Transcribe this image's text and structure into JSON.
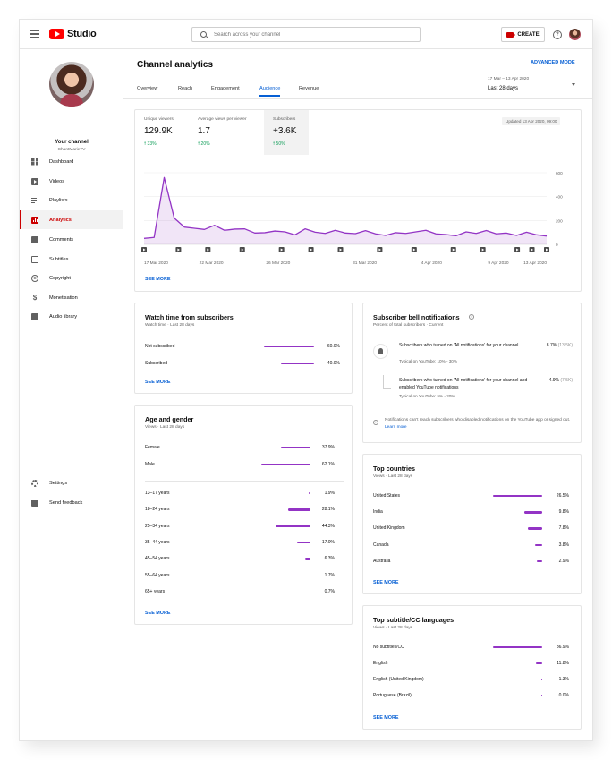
{
  "header": {
    "logo_text": "Studio",
    "search_placeholder": "Search across your channel",
    "create_label": "CREATE",
    "help_glyph": "?"
  },
  "sidebar": {
    "your_channel": "Your channel",
    "channel_name": "ChantMarieTV",
    "items": [
      {
        "label": "Dashboard",
        "icon": "dashboard-icon"
      },
      {
        "label": "Videos",
        "icon": "videos-icon"
      },
      {
        "label": "Playlists",
        "icon": "playlists-icon"
      },
      {
        "label": "Analytics",
        "icon": "analytics-icon",
        "active": true
      },
      {
        "label": "Comments",
        "icon": "comments-icon"
      },
      {
        "label": "Subtitles",
        "icon": "subtitles-icon"
      },
      {
        "label": "Copyright",
        "icon": "copyright-icon"
      },
      {
        "label": "Monetisation",
        "icon": "monetisation-icon"
      },
      {
        "label": "Audio library",
        "icon": "audio-library-icon"
      }
    ],
    "bottom_items": [
      {
        "label": "Settings",
        "icon": "settings-icon"
      },
      {
        "label": "Send feedback",
        "icon": "feedback-icon"
      }
    ]
  },
  "main": {
    "title": "Channel analytics",
    "advanced_mode": "ADVANCED MODE",
    "tabs": [
      "Overview",
      "Reach",
      "Engagement",
      "Audience",
      "Revenue"
    ],
    "active_tab": "Audience",
    "date_range": "17 Mar – 13 Apr 2020",
    "date_label": "Last 28 days"
  },
  "overview": {
    "metrics": [
      {
        "label": "Unique viewers",
        "value": "129.9K",
        "delta": "33%"
      },
      {
        "label": "Average views per viewer",
        "value": "1.7",
        "delta": "20%"
      },
      {
        "label": "Subscribers",
        "value": "+3.6K",
        "delta": "50%"
      }
    ],
    "updated": "Updated 13 Apr 2020, 09:00",
    "see_more": "SEE MORE"
  },
  "chart_data": {
    "type": "area",
    "series": [
      {
        "values": [
          50,
          58,
          560,
          220,
          145,
          135,
          125,
          160,
          118,
          128,
          130,
          95,
          98,
          112,
          105,
          80,
          130,
          102,
          92,
          118,
          95,
          90,
          115,
          88,
          75,
          98,
          92,
          105,
          118,
          88,
          82,
          72,
          105,
          92,
          116,
          88,
          95,
          75,
          102,
          80,
          70
        ]
      }
    ],
    "x_tick_labels": [
      "17 Mar 2020",
      "22 Mar 2020",
      "26 Mar 2020",
      "31 Mar 2020",
      "4 Apr 2020",
      "9 Apr 2020",
      "13 Apr 2020"
    ],
    "y_ticks": [
      0,
      200,
      400,
      600
    ],
    "ylim": [
      0,
      600
    ],
    "grid": true,
    "accent": "#9334c5"
  },
  "watch_time": {
    "title": "Watch time from subscribers",
    "subtitle": "Watch time · Last 28 days",
    "rows": [
      {
        "label": "Not subscribed",
        "pct": "60.0%",
        "value": 0.6
      },
      {
        "label": "Subscribed",
        "pct": "40.0%",
        "value": 0.4
      }
    ],
    "see_more": "SEE MORE"
  },
  "bell": {
    "title": "Subscriber bell notifications",
    "subtitle": "Percent of total subscribers · Current",
    "rows": [
      {
        "text": "Subscribers who turned on 'All notifications' for your channel",
        "typical": "Typical on YouTube: 10% - 30%",
        "pct": "8.7%",
        "count": "(13.5K)"
      },
      {
        "text": "Subscribers who turned on 'All notifications' for your channel and enabled YouTube notifications",
        "typical": "Typical on YouTube: 5% - 20%",
        "pct": "4.9%",
        "count": "(7.5K)"
      }
    ],
    "note": "Notifications can't reach subscribers who disabled notifications on the YouTube app or signed out.",
    "learn_more": "Learn more"
  },
  "age_gender": {
    "title": "Age and gender",
    "subtitle": "Views · Last 28 days",
    "gender": [
      {
        "label": "Female",
        "pct": "37.9%",
        "value": 0.379
      },
      {
        "label": "Male",
        "pct": "62.1%",
        "value": 0.621
      }
    ],
    "ages": [
      {
        "label": "13–17 years",
        "pct": "1.9%",
        "value": 0.019
      },
      {
        "label": "18–24 years",
        "pct": "28.1%",
        "value": 0.281
      },
      {
        "label": "25–34 years",
        "pct": "44.3%",
        "value": 0.443
      },
      {
        "label": "35–44 years",
        "pct": "17.0%",
        "value": 0.17
      },
      {
        "label": "45–54 years",
        "pct": "6.3%",
        "value": 0.063
      },
      {
        "label": "55–64 years",
        "pct": "1.7%",
        "value": 0.017
      },
      {
        "label": "65+ years",
        "pct": "0.7%",
        "value": 0.007
      }
    ],
    "see_more": "SEE MORE"
  },
  "countries": {
    "title": "Top countries",
    "subtitle": "Views · Last 28 days",
    "rows": [
      {
        "label": "United States",
        "pct": "26.5%",
        "value": 0.265
      },
      {
        "label": "India",
        "pct": "9.8%",
        "value": 0.098
      },
      {
        "label": "United Kingdom",
        "pct": "7.8%",
        "value": 0.078
      },
      {
        "label": "Canada",
        "pct": "3.8%",
        "value": 0.038
      },
      {
        "label": "Australia",
        "pct": "2.9%",
        "value": 0.029
      }
    ],
    "see_more": "SEE MORE"
  },
  "languages": {
    "title": "Top subtitle/CC languages",
    "subtitle": "Views · Last 28 days",
    "rows": [
      {
        "label": "No subtitles/CC",
        "pct": "86.9%",
        "value": 0.869
      },
      {
        "label": "English",
        "pct": "11.8%",
        "value": 0.118
      },
      {
        "label": "English (United Kingdom)",
        "pct": "1.3%",
        "value": 0.013
      },
      {
        "label": "Portuguese (Brazil)",
        "pct": "0.0%",
        "value": 0.0
      }
    ],
    "see_more": "SEE MORE"
  }
}
